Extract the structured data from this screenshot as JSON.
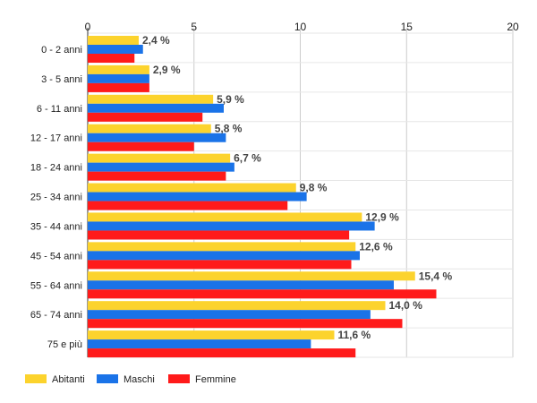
{
  "chart_data": {
    "type": "bar",
    "orientation": "horizontal",
    "categories": [
      "0 - 2 anni",
      "3 - 5 anni",
      "6 - 11 anni",
      "12 - 17 anni",
      "18 - 24 anni",
      "25 - 34 anni",
      "35 - 44 anni",
      "45 - 54 anni",
      "55 - 64 anni",
      "65 - 74 anni",
      "75 e più"
    ],
    "series": [
      {
        "name": "Abitanti",
        "color": "#fcd32d",
        "values": [
          2.4,
          2.9,
          5.9,
          5.8,
          6.7,
          9.8,
          12.9,
          12.6,
          15.4,
          14.0,
          11.6
        ],
        "data_labels": [
          "2,4 %",
          "2,9 %",
          "5,9 %",
          "5,8 %",
          "6,7 %",
          "9,8 %",
          "12,9 %",
          "12,6 %",
          "15,4 %",
          "14,0 %",
          "11,6 %"
        ]
      },
      {
        "name": "Maschi",
        "color": "#1a73e8",
        "values": [
          2.6,
          2.9,
          6.4,
          6.5,
          6.9,
          10.3,
          13.5,
          12.8,
          14.4,
          13.3,
          10.5
        ]
      },
      {
        "name": "Femmine",
        "color": "#ff1a1a",
        "values": [
          2.2,
          2.9,
          5.4,
          5.0,
          6.5,
          9.4,
          12.3,
          12.4,
          16.4,
          14.8,
          12.6
        ]
      }
    ],
    "xlim": [
      0,
      20
    ],
    "xticks": [
      "0",
      "5",
      "10",
      "15",
      "20"
    ],
    "xtick_values": [
      0,
      5,
      10,
      15,
      20
    ],
    "grid": true,
    "legend_position": "bottom-left"
  }
}
